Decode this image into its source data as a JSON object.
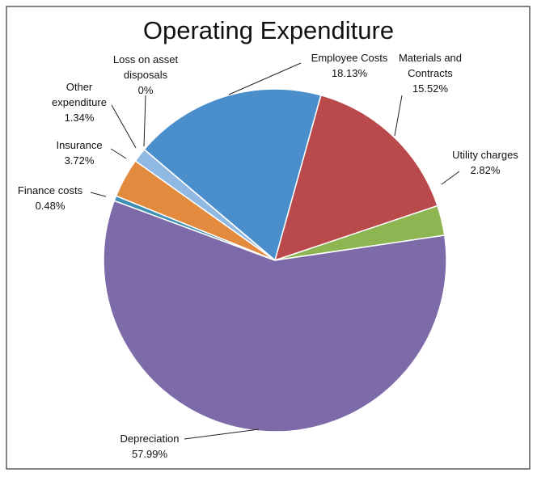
{
  "chart_data": {
    "type": "pie",
    "title": "Operating Expenditure",
    "categories": [
      "Employee Costs",
      "Materials and Contracts",
      "Utility charges",
      "Depreciation",
      "Finance costs",
      "Insurance",
      "Other expenditure",
      "Loss on asset disposals"
    ],
    "values": [
      18.13,
      15.52,
      2.82,
      57.99,
      0.48,
      3.72,
      1.34,
      0
    ],
    "value_labels": [
      "18.13%",
      "15.52%",
      "2.82%",
      "57.99%",
      "0.48%",
      "3.72%",
      "1.34%",
      "0%"
    ],
    "colors": [
      "#4a8fcb",
      "#b9494a",
      "#8db552",
      "#7c6aa9",
      "#3d8fb3",
      "#e28a3e",
      "#8fb9e3",
      "#bdbdbd"
    ]
  }
}
